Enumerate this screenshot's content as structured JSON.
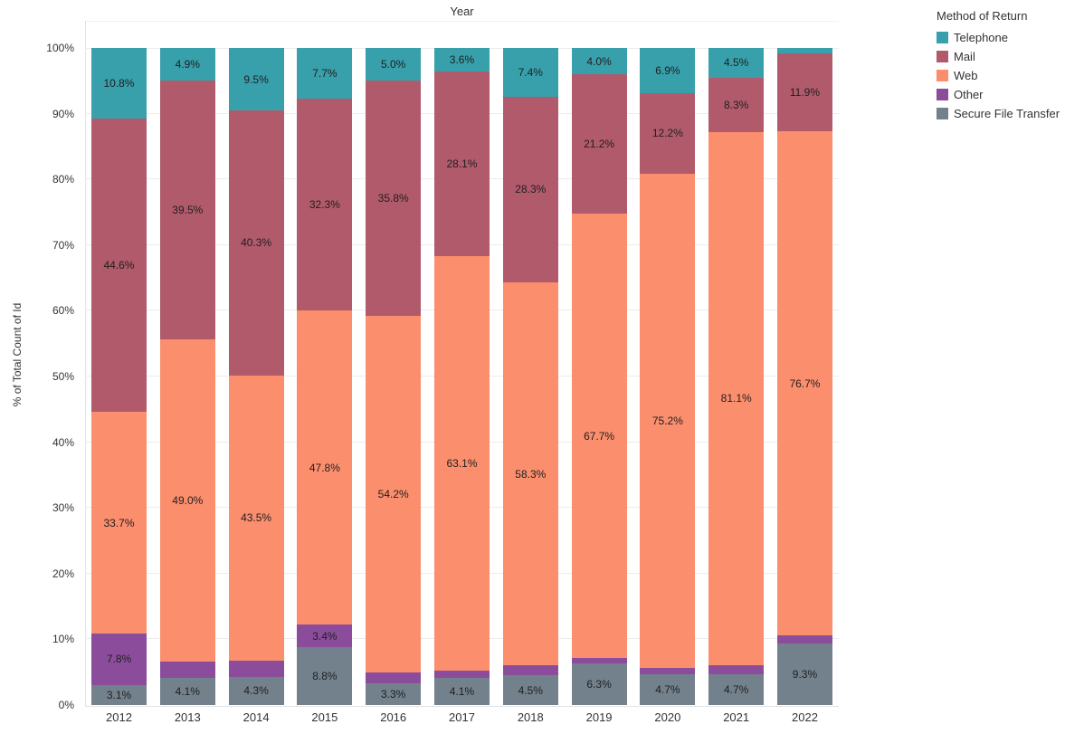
{
  "chart_data": {
    "type": "bar",
    "variant": "stacked-100-percent",
    "title": "Year",
    "ylabel": "% of Total Count of Id",
    "ylim": [
      0,
      100
    ],
    "ytick_step": 10,
    "ytick_labels": [
      "0%",
      "10%",
      "20%",
      "30%",
      "40%",
      "50%",
      "60%",
      "70%",
      "80%",
      "90%",
      "100%"
    ],
    "grid": true,
    "label_min_percent": 3,
    "categories": [
      "2012",
      "2013",
      "2014",
      "2015",
      "2016",
      "2017",
      "2018",
      "2019",
      "2020",
      "2021",
      "2022"
    ],
    "series": [
      {
        "name": "Telephone",
        "color": "#38a0ab",
        "values": [
          10.8,
          4.9,
          9.5,
          7.7,
          5.0,
          3.6,
          7.4,
          4.0,
          6.9,
          4.5,
          0.8
        ]
      },
      {
        "name": "Mail",
        "color": "#b15a6b",
        "values": [
          44.6,
          39.5,
          40.3,
          32.3,
          35.8,
          28.1,
          28.3,
          21.2,
          12.2,
          8.3,
          11.9
        ]
      },
      {
        "name": "Web",
        "color": "#fb8e6d",
        "values": [
          33.7,
          49.0,
          43.5,
          47.8,
          54.2,
          63.1,
          58.3,
          67.7,
          75.2,
          81.1,
          76.7
        ]
      },
      {
        "name": "Other",
        "color": "#8b4d9b",
        "values": [
          7.8,
          2.5,
          2.4,
          3.4,
          1.7,
          1.1,
          1.5,
          0.8,
          1.0,
          1.4,
          1.3
        ]
      },
      {
        "name": "Secure File Transfer",
        "color": "#73818c",
        "values": [
          3.1,
          4.1,
          4.3,
          8.8,
          3.3,
          4.1,
          4.5,
          6.3,
          4.7,
          4.7,
          9.3
        ]
      }
    ],
    "stack_order_bottom_to_top": [
      "Secure File Transfer",
      "Other",
      "Web",
      "Mail",
      "Telephone"
    ],
    "legend": {
      "title": "Method of Return",
      "position": "top-right",
      "entries": [
        "Telephone",
        "Mail",
        "Web",
        "Other",
        "Secure File Transfer"
      ]
    }
  }
}
